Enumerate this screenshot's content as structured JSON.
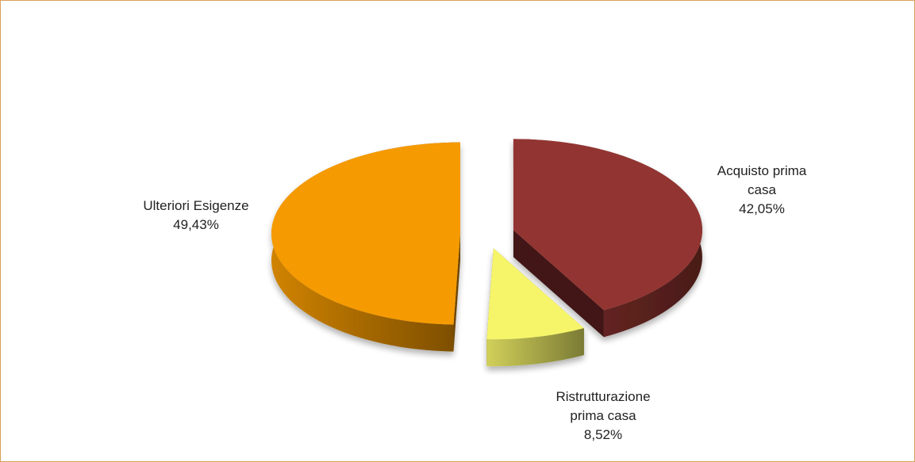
{
  "chart_data": {
    "type": "pie",
    "categories": [
      "Acquisto prima casa",
      "Ristrutturazione prima casa",
      "Ulteriori Esigenze"
    ],
    "values": [
      42.05,
      8.52,
      49.43
    ],
    "value_labels": [
      "42,05%",
      "8,52%",
      "49,43%"
    ],
    "colors": [
      "#923530",
      "#f6f56a",
      "#f59a06"
    ],
    "exploded": true,
    "three_d": true
  }
}
